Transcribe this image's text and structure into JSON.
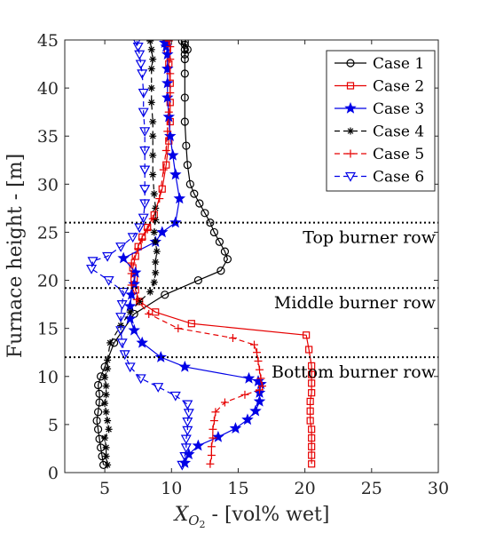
{
  "chart_data": {
    "type": "line",
    "xlabel_main": "X",
    "xlabel_sub": "O",
    "xlabel_subsub": "2",
    "xlabel_rest": " - [vol% wet]",
    "ylabel": "Furnace height - [m]",
    "xlim": [
      2,
      30
    ],
    "ylim": [
      0,
      45
    ],
    "xticks": [
      5,
      10,
      15,
      20,
      25,
      30
    ],
    "yticks": [
      0,
      5,
      10,
      15,
      20,
      25,
      30,
      35,
      40,
      45
    ],
    "grid": false,
    "legend_position": "top-right",
    "hlines": [
      {
        "y": 26,
        "label": "Top burner row"
      },
      {
        "y": 19.2,
        "label": "Middle burner row"
      },
      {
        "y": 12,
        "label": "Bottom burner row"
      }
    ],
    "series": [
      {
        "name": "Case 1",
        "color": "#000000",
        "dash": "solid",
        "marker": "circle",
        "x": [
          4.9,
          4.8,
          4.7,
          4.6,
          4.5,
          4.4,
          4.5,
          4.6,
          4.6,
          4.5,
          4.7,
          5.0,
          5.7,
          7.2,
          9.5,
          12.0,
          13.7,
          14.2,
          14.0,
          13.6,
          13.2,
          12.9,
          12.5,
          12.1,
          11.7,
          11.4,
          11.2,
          11.1,
          11.0,
          11.0,
          11.0,
          11.0,
          11.0,
          11.0,
          11.0,
          11.2,
          11.0,
          10.8
        ],
        "y": [
          0.8,
          1.7,
          2.6,
          3.5,
          4.5,
          5.4,
          6.3,
          7.3,
          8.2,
          9.1,
          10.0,
          11.0,
          13.5,
          16.5,
          18.5,
          20.0,
          21.0,
          22.2,
          23.0,
          24.0,
          25.0,
          26.0,
          27.0,
          28.0,
          29.0,
          30.0,
          32.0,
          34.0,
          36.5,
          39.0,
          41.5,
          43.0,
          44.0,
          44.5,
          44.8,
          44.0,
          43.5,
          44.9
        ]
      },
      {
        "name": "Case 2",
        "color": "#e60000",
        "dash": "solid",
        "marker": "square",
        "x": [
          20.5,
          20.5,
          20.5,
          20.5,
          20.5,
          20.4,
          20.4,
          20.4,
          20.5,
          20.5,
          20.5,
          20.5,
          20.3,
          20.1,
          11.5,
          8.8,
          7.6,
          7.3,
          7.2,
          7.1,
          7.3,
          7.5,
          7.8,
          8.2,
          8.7,
          9.3,
          9.6,
          9.8,
          9.9,
          9.9,
          9.9,
          9.8,
          9.7,
          9.6,
          9.6
        ],
        "y": [
          0.9,
          1.8,
          2.7,
          3.6,
          4.5,
          5.4,
          6.4,
          7.4,
          8.3,
          9.3,
          10.2,
          11.1,
          12.8,
          14.3,
          15.5,
          16.7,
          17.8,
          19.0,
          20.2,
          21.3,
          22.5,
          23.5,
          24.5,
          25.5,
          26.8,
          29.5,
          32.0,
          34.5,
          36.5,
          38.5,
          40.5,
          42.5,
          44.0,
          44.8,
          44.9
        ]
      },
      {
        "name": "Case 3",
        "color": "#0000e6",
        "dash": "solid",
        "marker": "star",
        "x": [
          11.0,
          11.3,
          12.0,
          13.5,
          14.8,
          15.7,
          16.3,
          16.6,
          16.6,
          16.7,
          16.5,
          15.8,
          11.0,
          9.2,
          7.8,
          7.2,
          6.9,
          6.9,
          7.0,
          7.2,
          7.3,
          6.4,
          8.8,
          9.3,
          10.3,
          10.6,
          10.3,
          10.1,
          9.9,
          9.8,
          9.7,
          9.7,
          9.7,
          9.7,
          9.6,
          9.5,
          9.7
        ],
        "y": [
          1.0,
          1.9,
          2.8,
          3.7,
          4.6,
          5.5,
          6.4,
          7.4,
          8.3,
          9.2,
          9.5,
          9.8,
          11.0,
          12.0,
          13.5,
          14.8,
          16.0,
          17.3,
          18.5,
          19.6,
          20.8,
          22.3,
          24.0,
          25.0,
          26.0,
          28.5,
          31.0,
          33.0,
          35.0,
          37.0,
          39.0,
          40.5,
          42.0,
          43.5,
          44.3,
          44.7,
          44.9
        ]
      },
      {
        "name": "Case 4",
        "color": "#000000",
        "dash": "6,4",
        "marker": "asterisk",
        "x": [
          5.2,
          5.1,
          5.1,
          5.0,
          5.3,
          5.2,
          5.1,
          5.0,
          5.1,
          5.1,
          5.0,
          5.2,
          5.2,
          5.4,
          6.2,
          6.9,
          7.6,
          8.4,
          8.7,
          8.8,
          8.8,
          8.9,
          8.8,
          8.7,
          8.8,
          8.8,
          8.7,
          8.6,
          8.6,
          8.6,
          8.6,
          8.5,
          8.5,
          8.5,
          8.6,
          8.5,
          8.4
        ],
        "y": [
          0.8,
          1.7,
          2.6,
          3.6,
          4.5,
          5.4,
          6.3,
          7.2,
          8.1,
          9.0,
          9.9,
          10.8,
          11.7,
          13.5,
          15.3,
          16.7,
          17.8,
          18.8,
          19.8,
          20.8,
          21.9,
          23.0,
          24.0,
          25.0,
          26.3,
          27.5,
          29.0,
          31.0,
          33.0,
          35.0,
          36.5,
          38.5,
          40.0,
          42.0,
          43.0,
          44.0,
          44.9
        ]
      },
      {
        "name": "Case 5",
        "color": "#e60000",
        "dash": "6,4",
        "marker": "plus",
        "x": [
          12.9,
          13.0,
          13.0,
          13.1,
          13.1,
          13.2,
          13.3,
          14.0,
          15.5,
          16.6,
          16.8,
          16.7,
          16.6,
          16.5,
          16.4,
          16.2,
          14.6,
          10.5,
          8.3,
          7.4,
          7.0,
          7.0,
          7.0,
          7.5,
          7.8,
          8.2,
          8.6,
          9.1,
          9.4,
          9.6,
          9.7,
          9.8,
          9.9,
          9.9,
          9.9,
          9.9,
          9.8
        ],
        "y": [
          0.9,
          1.8,
          2.7,
          3.6,
          4.5,
          5.4,
          6.3,
          7.3,
          8.1,
          8.6,
          9.0,
          9.8,
          10.7,
          11.6,
          12.5,
          13.3,
          14.0,
          15.0,
          16.5,
          18.0,
          19.5,
          20.7,
          21.8,
          23.3,
          24.3,
          25.3,
          26.4,
          28.5,
          31.5,
          33.5,
          35.5,
          37.5,
          39.5,
          41.5,
          43.0,
          44.3,
          44.9
        ]
      },
      {
        "name": "Case 6",
        "color": "#0000e6",
        "dash": "6,4",
        "marker": "triangle-down",
        "x": [
          10.8,
          11.0,
          11.1,
          11.1,
          11.2,
          11.2,
          11.3,
          11.2,
          10.3,
          9.0,
          7.7,
          6.9,
          6.5,
          6.3,
          6.2,
          6.2,
          6.3,
          6.4,
          5.3,
          4.0,
          4.1,
          5.2,
          6.2,
          7.1,
          7.6,
          7.9,
          8.0,
          8.0,
          8.0,
          8.0,
          8.0,
          7.9,
          7.9,
          7.8,
          7.7,
          7.6,
          7.5,
          7.4
        ],
        "y": [
          0.8,
          1.7,
          2.6,
          3.5,
          4.4,
          5.3,
          6.2,
          7.1,
          8.0,
          8.9,
          9.8,
          11.0,
          12.3,
          13.5,
          14.8,
          16.2,
          17.5,
          18.8,
          20.0,
          21.2,
          22.0,
          22.5,
          23.5,
          24.5,
          25.5,
          26.5,
          28.0,
          29.5,
          31.5,
          33.5,
          35.5,
          37.5,
          39.5,
          41.5,
          42.5,
          43.5,
          44.3,
          44.9
        ]
      }
    ]
  }
}
